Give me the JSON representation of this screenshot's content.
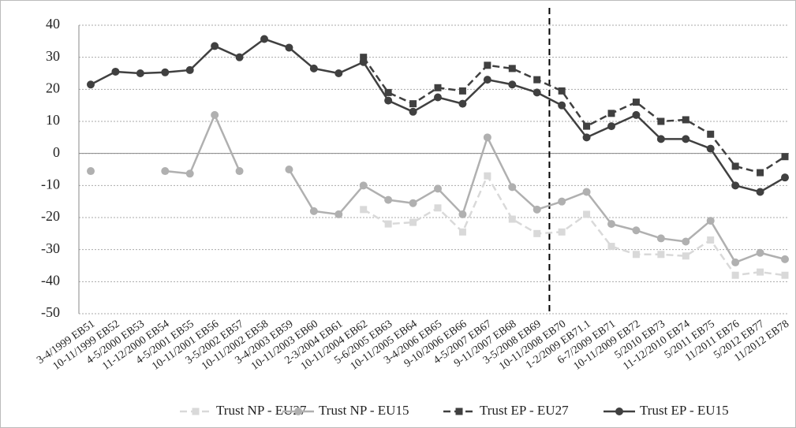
{
  "chart_data": {
    "type": "line",
    "categories": [
      "3-4/1999 EB51",
      "10-11/1999 EB52",
      "4-5/2000 EB53",
      "11-12/2000 EB54",
      "4-5/2001 EB55",
      "10-11/2001 EB56",
      "3-5/2002 EB57",
      "10-11/2002 EB58",
      "3-4/2003 EB59",
      "10-11/2003 EB60",
      "2-3/2004 EB61",
      "10-11/2004 EB62",
      "5-6/2005 EB63",
      "10-11/2005 EB64",
      "3-4/2006 EB65",
      "9-10/2006 EB66",
      "4-5/2007 EB67",
      "9-11/2007 EB68",
      "3-5/2008 EB69",
      "10-11/2008 EB70",
      "1-2/2009 EB71.1",
      "6-7/2009 EB71",
      "10-11/2009 EB72",
      "5/2010 EB73",
      "11-12/2010 EB74",
      "5/2011 EB75",
      "11/2011 EB76",
      "5/2012 EB77",
      "11/2012 EB78"
    ],
    "series": [
      {
        "name": "Trust NP - EU27",
        "color": "#d9d9d9",
        "dashed": true,
        "marker": "square",
        "values": [
          null,
          null,
          null,
          null,
          null,
          null,
          null,
          null,
          null,
          null,
          null,
          -17.5,
          -22,
          -21.5,
          -17,
          -24.5,
          -7,
          -20.5,
          -25,
          -24.5,
          -19,
          -29,
          -31.5,
          -31.5,
          -32,
          -27,
          -38,
          -37,
          -38
        ]
      },
      {
        "name": "Trust NP - EU15",
        "color": "#b0b0b0",
        "dashed": false,
        "marker": "circle",
        "values": [
          -5.5,
          null,
          null,
          -5.5,
          -6.3,
          12,
          -5.5,
          null,
          -5,
          -18,
          -19,
          -10,
          -14.5,
          -15.5,
          -11,
          -19,
          5,
          -10.5,
          -17.5,
          -15,
          -12,
          -22,
          -24,
          -26.5,
          -27.5,
          -21,
          -34,
          -31,
          -33
        ]
      },
      {
        "name": "Trust EP - EU27",
        "color": "#404040",
        "dashed": true,
        "marker": "square",
        "values": [
          null,
          null,
          null,
          null,
          null,
          null,
          null,
          null,
          null,
          null,
          null,
          30,
          19,
          15.5,
          20.5,
          19.5,
          27.5,
          26.5,
          23,
          19.5,
          8.5,
          12.5,
          16,
          10,
          10.5,
          6,
          -4,
          -6,
          -1
        ]
      },
      {
        "name": "Trust EP - EU15",
        "color": "#404040",
        "dashed": false,
        "marker": "circle",
        "values": [
          21.5,
          25.5,
          25,
          25.3,
          26,
          33.5,
          30,
          35.7,
          33,
          26.5,
          25,
          28.5,
          16.5,
          13,
          17.5,
          15.5,
          23,
          21.5,
          19,
          15,
          5,
          8.5,
          12,
          4.5,
          4.5,
          1.5,
          -10,
          -12,
          -7.5
        ]
      }
    ],
    "ylim": [
      -50,
      40
    ],
    "yticks": [
      -50,
      -40,
      -30,
      -20,
      -10,
      0,
      10,
      20,
      30,
      40
    ],
    "grid": true
  }
}
